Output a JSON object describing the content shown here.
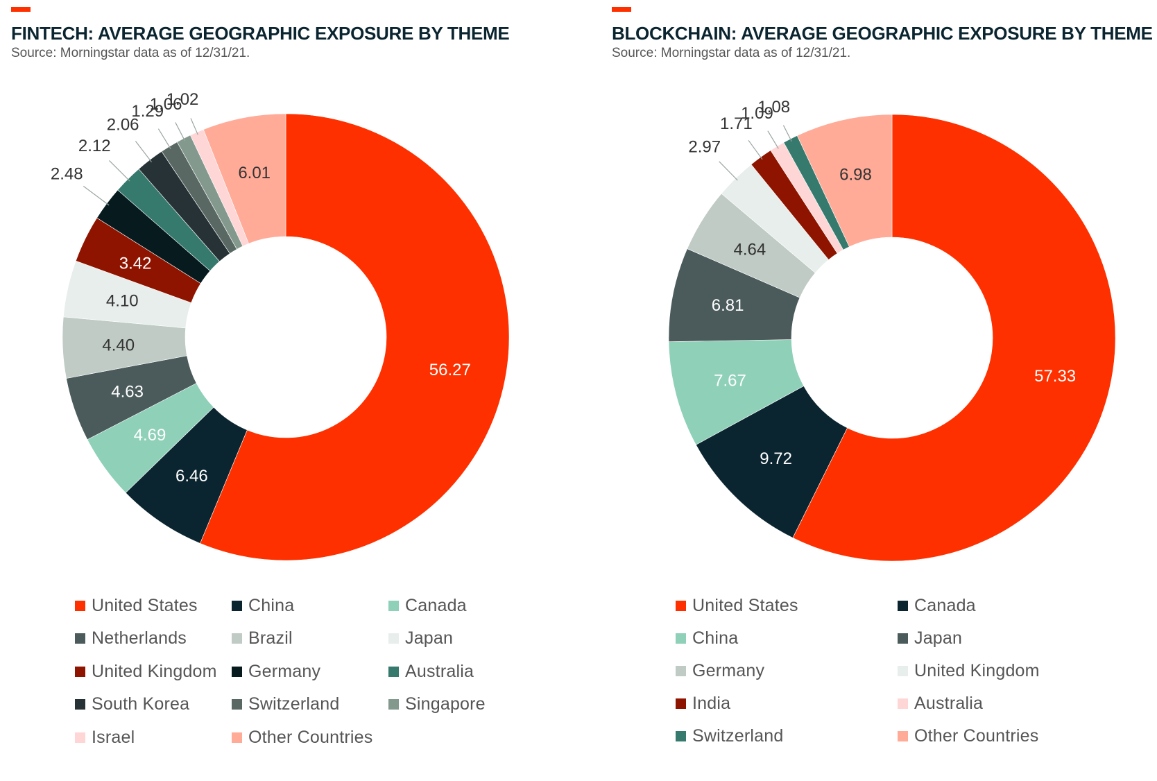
{
  "chart_data": [
    {
      "type": "pie",
      "title": "FINTECH: AVERAGE GEOGRAPHIC EXPOSURE BY THEME",
      "subtitle": "Source: Morningstar data as of 12/31/21.",
      "categories": [
        "United States",
        "China",
        "Canada",
        "Netherlands",
        "Brazil",
        "Japan",
        "United Kingdom",
        "Germany",
        "Australia",
        "South Korea",
        "Switzerland",
        "Singapore",
        "Israel",
        "Other Countries"
      ],
      "values": [
        56.27,
        6.46,
        4.69,
        4.63,
        4.4,
        4.1,
        3.42,
        2.48,
        2.12,
        2.06,
        1.29,
        1.06,
        1.02,
        6.01
      ],
      "labels": [
        "56.27",
        "6.46",
        "4.69",
        "4.63",
        "4.40",
        "4.10",
        "3.42",
        "2.48",
        "2.12",
        "2.06",
        "1.29",
        "1.06",
        "1.02",
        "6.01"
      ],
      "colors": [
        "#ff3000",
        "#0b2530",
        "#8ed0b8",
        "#4b5a5a",
        "#bfcbc4",
        "#e8eeeb",
        "#8e1400",
        "#071a1e",
        "#367a6e",
        "#263236",
        "#596863",
        "#84998e",
        "#ffd6d6",
        "#ffab98"
      ],
      "label_colors": [
        "#ffffff",
        "#ffffff",
        "#ffffff",
        "#ffffff",
        "#333333",
        "#333333",
        "#ffffff",
        "#333333",
        "#333333",
        "#333333",
        "#333333",
        "#333333",
        "#333333",
        "#333333"
      ],
      "legend_placement": "bottom"
    },
    {
      "type": "pie",
      "title": "BLOCKCHAIN: AVERAGE GEOGRAPHIC EXPOSURE BY THEME",
      "subtitle": "Source: Morningstar data as of 12/31/21.",
      "categories": [
        "United States",
        "Canada",
        "China",
        "Japan",
        "Germany",
        "United Kingdom",
        "India",
        "Australia",
        "Switzerland",
        "Other Countries"
      ],
      "values": [
        57.33,
        9.72,
        7.67,
        6.81,
        4.64,
        2.97,
        1.71,
        1.09,
        1.08,
        6.98
      ],
      "labels": [
        "57.33",
        "9.72",
        "7.67",
        "6.81",
        "4.64",
        "2.97",
        "1.71",
        "1.09",
        "1.08",
        "6.98"
      ],
      "colors": [
        "#ff3000",
        "#0b2530",
        "#8ed0b8",
        "#4b5a5a",
        "#bfcbc4",
        "#e8eeeb",
        "#8e1400",
        "#ffd6d6",
        "#367a6e",
        "#ffab98"
      ],
      "label_colors": [
        "#ffffff",
        "#ffffff",
        "#ffffff",
        "#ffffff",
        "#333333",
        "#333333",
        "#333333",
        "#333333",
        "#333333",
        "#333333"
      ],
      "legend_placement": "bottom"
    }
  ]
}
